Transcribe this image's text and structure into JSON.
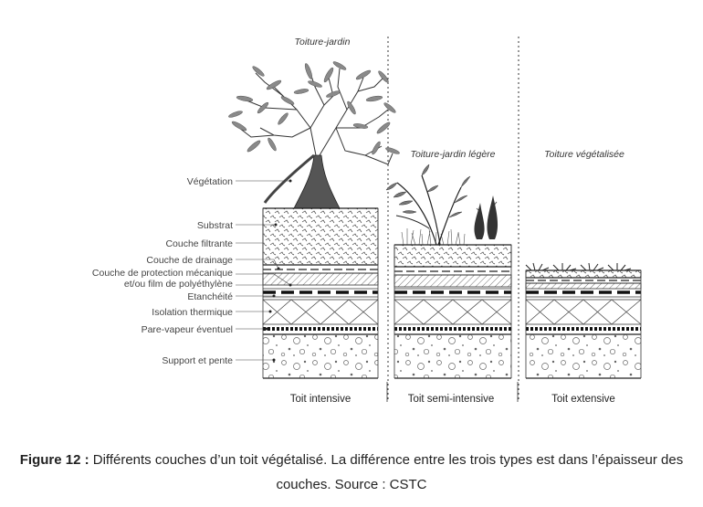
{
  "titles": {
    "intensive": "Toiture-jardin",
    "semi": "Toiture-jardin légère",
    "extensive": "Toiture végétalisée"
  },
  "layers": [
    "Végétation",
    "Substrat",
    "Couche filtrante",
    "Couche de drainage",
    "Couche de protection mécanique",
    "et/ou film de polyéthylène",
    "Etanchéité",
    "Isolation thermique",
    "Pare-vapeur éventuel",
    "Support et pente"
  ],
  "columns": [
    "Toit intensive",
    "Toit semi-intensive",
    "Toit extensive"
  ],
  "caption": {
    "label": "Figure 12 :",
    "text": "Différents couches d’un toit végétalisé. La différence entre les trois types est dans l’épaisseur des couches. Source : CSTC"
  },
  "colors": {
    "ink": "#222222",
    "leaf": "#8a8a8a",
    "label": "#444444"
  }
}
